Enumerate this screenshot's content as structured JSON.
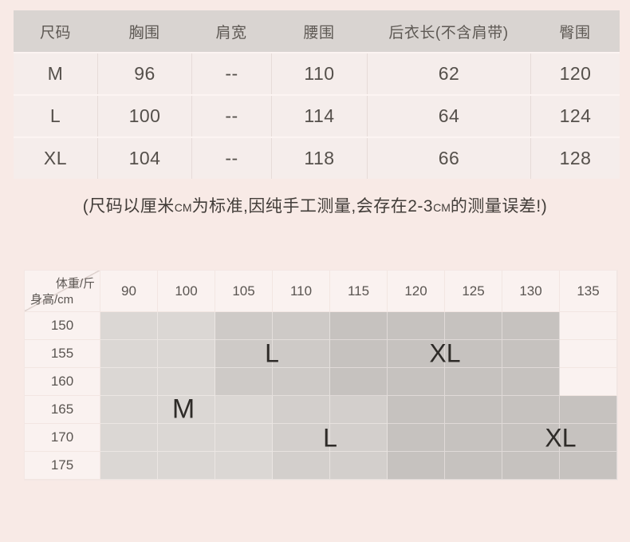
{
  "colors": {
    "page_bg": "#f8eae6",
    "size_table_header_bg": "#d9d4d1",
    "size_table_cell_bg": "#f5edeb",
    "fit_table_cell_bg": "#faf2f0",
    "zone_m": "#dbd7d4",
    "zone_l_upper": "#cecac7",
    "zone_l_lower": "#d3cfcc",
    "zone_xl": "#c6c2bf",
    "text": "#55504b"
  },
  "size_table": {
    "headers": [
      "尺码",
      "胸围",
      "肩宽",
      "腰围",
      "后衣长(不含肩带)",
      "臀围"
    ],
    "rows": [
      [
        "M",
        "96",
        "--",
        "110",
        "62",
        "120"
      ],
      [
        "L",
        "100",
        "--",
        "114",
        "64",
        "124"
      ],
      [
        "XL",
        "104",
        "--",
        "118",
        "66",
        "128"
      ]
    ]
  },
  "note": {
    "part1": "(尺码以厘米",
    "cm1": "CM",
    "part2": "为标准,因纯手工测量,会存在2-3",
    "cm2": "CM",
    "part3": "的测量误差!)"
  },
  "fit_table": {
    "corner_top": "体重/斤",
    "corner_bottom": "身高/cm",
    "weights": [
      "90",
      "100",
      "105",
      "110",
      "115",
      "120",
      "125",
      "130",
      "135"
    ],
    "heights": [
      "150",
      "155",
      "160",
      "165",
      "170",
      "175"
    ],
    "cell_shades": [
      [
        "m",
        "m",
        "l",
        "l",
        "x",
        "x",
        "x",
        "x",
        "0"
      ],
      [
        "m",
        "m",
        "l",
        "l",
        "x",
        "x",
        "x",
        "x",
        "0"
      ],
      [
        "m",
        "m",
        "l",
        "l",
        "x",
        "x",
        "x",
        "x",
        "0"
      ],
      [
        "m",
        "m",
        "m",
        "l2",
        "l2",
        "x",
        "x",
        "x",
        "x"
      ],
      [
        "m",
        "m",
        "m",
        "l2",
        "l2",
        "x",
        "x",
        "x",
        "x"
      ],
      [
        "m",
        "m",
        "m",
        "l2",
        "l2",
        "x",
        "x",
        "x",
        "x"
      ]
    ],
    "labels": {
      "m": "M",
      "l_upper": "L",
      "xl_upper": "XL",
      "l_lower": "L",
      "xl_lower": "XL"
    }
  }
}
